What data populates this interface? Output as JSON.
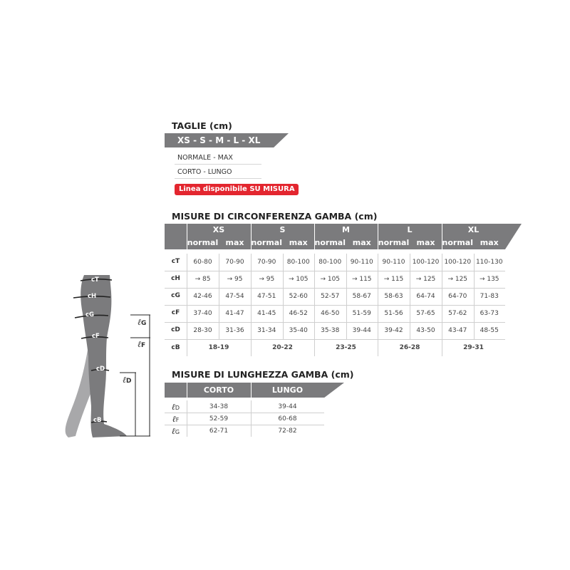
{
  "sizes_section": {
    "title": "TAGLIE (cm)",
    "sizes": "XS - S - M - L - XL",
    "options": [
      "NORMALE - MAX",
      "CORTO - LUNGO"
    ],
    "custom_badge": "Linea disponibile SU MISURA"
  },
  "circumference": {
    "title": "MISURE DI CIRCONFERENZA GAMBA (cm)",
    "sizes": [
      "XS",
      "S",
      "M",
      "L",
      "XL"
    ],
    "subheaders": [
      "normal",
      "max"
    ],
    "rows": [
      {
        "label": "cT",
        "values": [
          "60-80",
          "70-90",
          "70-90",
          "80-100",
          "80-100",
          "90-110",
          "90-110",
          "100-120",
          "100-120",
          "110-130"
        ]
      },
      {
        "label": "cH",
        "values": [
          "→ 85",
          "→ 95",
          "→ 95",
          "→ 105",
          "→ 105",
          "→ 115",
          "→ 115",
          "→ 125",
          "→ 125",
          "→ 135"
        ]
      },
      {
        "label": "cG",
        "values": [
          "42-46",
          "47-54",
          "47-51",
          "52-60",
          "52-57",
          "58-67",
          "58-63",
          "64-74",
          "64-70",
          "71-83"
        ]
      },
      {
        "label": "cF",
        "values": [
          "37-40",
          "41-47",
          "41-45",
          "46-52",
          "46-50",
          "51-59",
          "51-56",
          "57-65",
          "57-62",
          "63-73"
        ]
      },
      {
        "label": "cD",
        "values": [
          "28-30",
          "31-36",
          "31-34",
          "35-40",
          "35-38",
          "39-44",
          "39-42",
          "43-50",
          "43-47",
          "48-55"
        ]
      }
    ],
    "cB": {
      "label": "cB",
      "values": [
        "18-19",
        "20-22",
        "23-25",
        "26-28",
        "29-31"
      ]
    }
  },
  "length": {
    "title": "MISURE DI LUNGHEZZA GAMBA (cm)",
    "headers": [
      "CORTO",
      "LUNGO"
    ],
    "rows": [
      {
        "label": "ℓ",
        "sub": "D",
        "values": [
          "34-38",
          "39-44"
        ]
      },
      {
        "label": "ℓ",
        "sub": "F",
        "values": [
          "52-59",
          "60-68"
        ]
      },
      {
        "label": "ℓ",
        "sub": "G",
        "values": [
          "62-71",
          "72-82"
        ]
      }
    ]
  },
  "figure": {
    "points": [
      "cT",
      "cH",
      "cG",
      "cF",
      "cD",
      "cB"
    ],
    "lengths": [
      {
        "l": "ℓ",
        "sub": "G"
      },
      {
        "l": "ℓ",
        "sub": "F"
      },
      {
        "l": "ℓ",
        "sub": "D"
      }
    ],
    "colors": {
      "leg_front": "#7b7b7d",
      "leg_back": "#a8a8aa",
      "accent": "#e3262f"
    }
  }
}
